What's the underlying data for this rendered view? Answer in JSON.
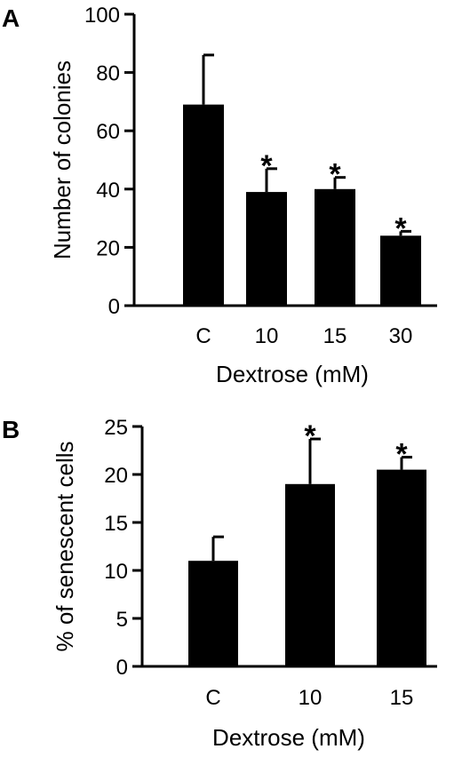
{
  "chart_data": [
    {
      "type": "bar",
      "panel_label": "A",
      "categories": [
        "C",
        "10",
        "15",
        "30"
      ],
      "values": [
        69,
        39,
        40,
        24
      ],
      "errors": [
        17,
        8,
        4,
        1.5
      ],
      "significance": [
        "",
        "*",
        "*",
        "*"
      ],
      "xlabel": "Dextrose (mM)",
      "ylabel": "Number of colonies",
      "ylim": [
        0,
        100
      ],
      "yticks": [
        "0",
        "20",
        "40",
        "60",
        "80",
        "100"
      ],
      "ytick_values": [
        0,
        20,
        40,
        60,
        80,
        100
      ],
      "grid": false,
      "bar_color": "#000000"
    },
    {
      "type": "bar",
      "panel_label": "B",
      "categories": [
        "C",
        "10",
        "15"
      ],
      "values": [
        11,
        19,
        20.5
      ],
      "errors": [
        2.5,
        4.7,
        1.3
      ],
      "significance": [
        "",
        "*",
        "*"
      ],
      "xlabel": "Dextrose (mM)",
      "ylabel": "% of senescent cells",
      "ylim": [
        0,
        25
      ],
      "yticks": [
        "0",
        "5",
        "10",
        "15",
        "20",
        "25"
      ],
      "ytick_values": [
        0,
        5,
        10,
        15,
        20,
        25
      ],
      "grid": false,
      "bar_color": "#000000"
    }
  ]
}
